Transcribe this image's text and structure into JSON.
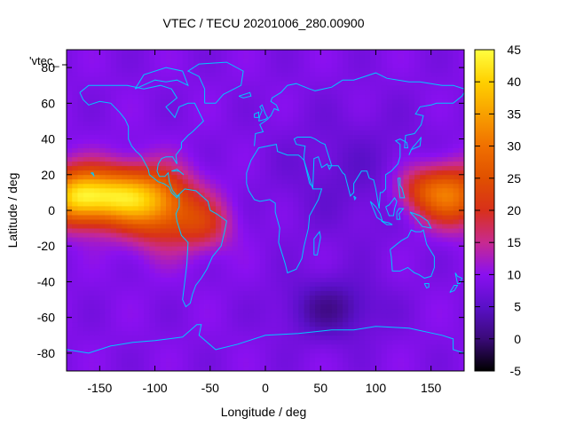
{
  "chart_data": {
    "type": "heatmap",
    "title": "VTEC / TECU 20201006_280.00900",
    "xlabel": "Longitude / deg",
    "ylabel": "Latitude / deg",
    "xlim": [
      -180,
      180
    ],
    "ylim": [
      -90,
      90
    ],
    "xticks": [
      -150,
      -100,
      -50,
      0,
      50,
      100,
      150
    ],
    "yticks": [
      -80,
      -60,
      -40,
      -20,
      0,
      20,
      40,
      60,
      80
    ],
    "colorbar": {
      "range": [
        -5,
        45
      ],
      "ticks": [
        -5,
        0,
        5,
        10,
        15,
        20,
        25,
        30,
        35,
        40,
        45
      ],
      "stops": [
        {
          "v": -5,
          "color": "#000000"
        },
        {
          "v": 0,
          "color": "#3a0a78"
        },
        {
          "v": 5,
          "color": "#5a10c8"
        },
        {
          "v": 10,
          "color": "#8a10f0"
        },
        {
          "v": 15,
          "color": "#c82a90"
        },
        {
          "v": 20,
          "color": "#d8301a"
        },
        {
          "v": 25,
          "color": "#e05000"
        },
        {
          "v": 30,
          "color": "#f07000"
        },
        {
          "v": 35,
          "color": "#f8a000"
        },
        {
          "v": 40,
          "color": "#ffd000"
        },
        {
          "v": 45,
          "color": "#ffff40"
        }
      ]
    },
    "legend_entry": "'vtec_",
    "field_features": {
      "background_tecu": 9,
      "anomalies": [
        {
          "lon": -140,
          "lat": 8,
          "sigma_lon": 35,
          "sigma_lat": 11,
          "amp": 30
        },
        {
          "lon": -175,
          "lat": 8,
          "sigma_lon": 18,
          "sigma_lat": 11,
          "amp": 14
        },
        {
          "lon": -95,
          "lat": 0,
          "sigma_lon": 25,
          "sigma_lat": 15,
          "amp": 14
        },
        {
          "lon": -55,
          "lat": -8,
          "sigma_lon": 18,
          "sigma_lat": 10,
          "amp": 9
        },
        {
          "lon": 170,
          "lat": 8,
          "sigma_lon": 22,
          "sigma_lat": 12,
          "amp": 20
        },
        {
          "lon": 140,
          "lat": 12,
          "sigma_lon": 18,
          "sigma_lat": 9,
          "amp": 9
        },
        {
          "lon": 60,
          "lat": -55,
          "sigma_lon": 30,
          "sigma_lat": 12,
          "amp": -7
        },
        {
          "lon": 80,
          "lat": 20,
          "sigma_lon": 50,
          "sigma_lat": 25,
          "amp": -3
        }
      ]
    }
  }
}
